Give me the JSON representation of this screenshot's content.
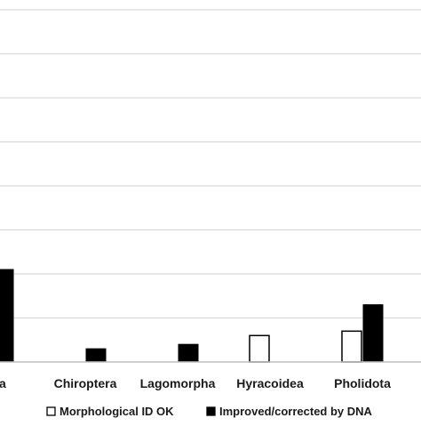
{
  "chart_data": {
    "type": "bar",
    "categories": [
      "vora",
      "Chiroptera",
      "Lagomorpha",
      "Hyracoidea",
      "Pholidota"
    ],
    "series": [
      {
        "name": "Morphological ID OK",
        "values": [
          0,
          0,
          0,
          6,
          7
        ],
        "fill": "#ffffff",
        "stroke": "#000000"
      },
      {
        "name": "Improved/corrected by DNA",
        "values": [
          21,
          3,
          4,
          0,
          13
        ],
        "fill": "#000000",
        "stroke": "#000000"
      }
    ],
    "ylim": [
      0,
      80
    ],
    "y_gridlines": [
      10,
      20,
      30,
      40,
      50,
      60,
      70,
      80
    ],
    "grid": true,
    "legend_position": "bottom",
    "colors": {
      "grid": "#d9d9d9",
      "axis": "#bfbfbf"
    }
  }
}
